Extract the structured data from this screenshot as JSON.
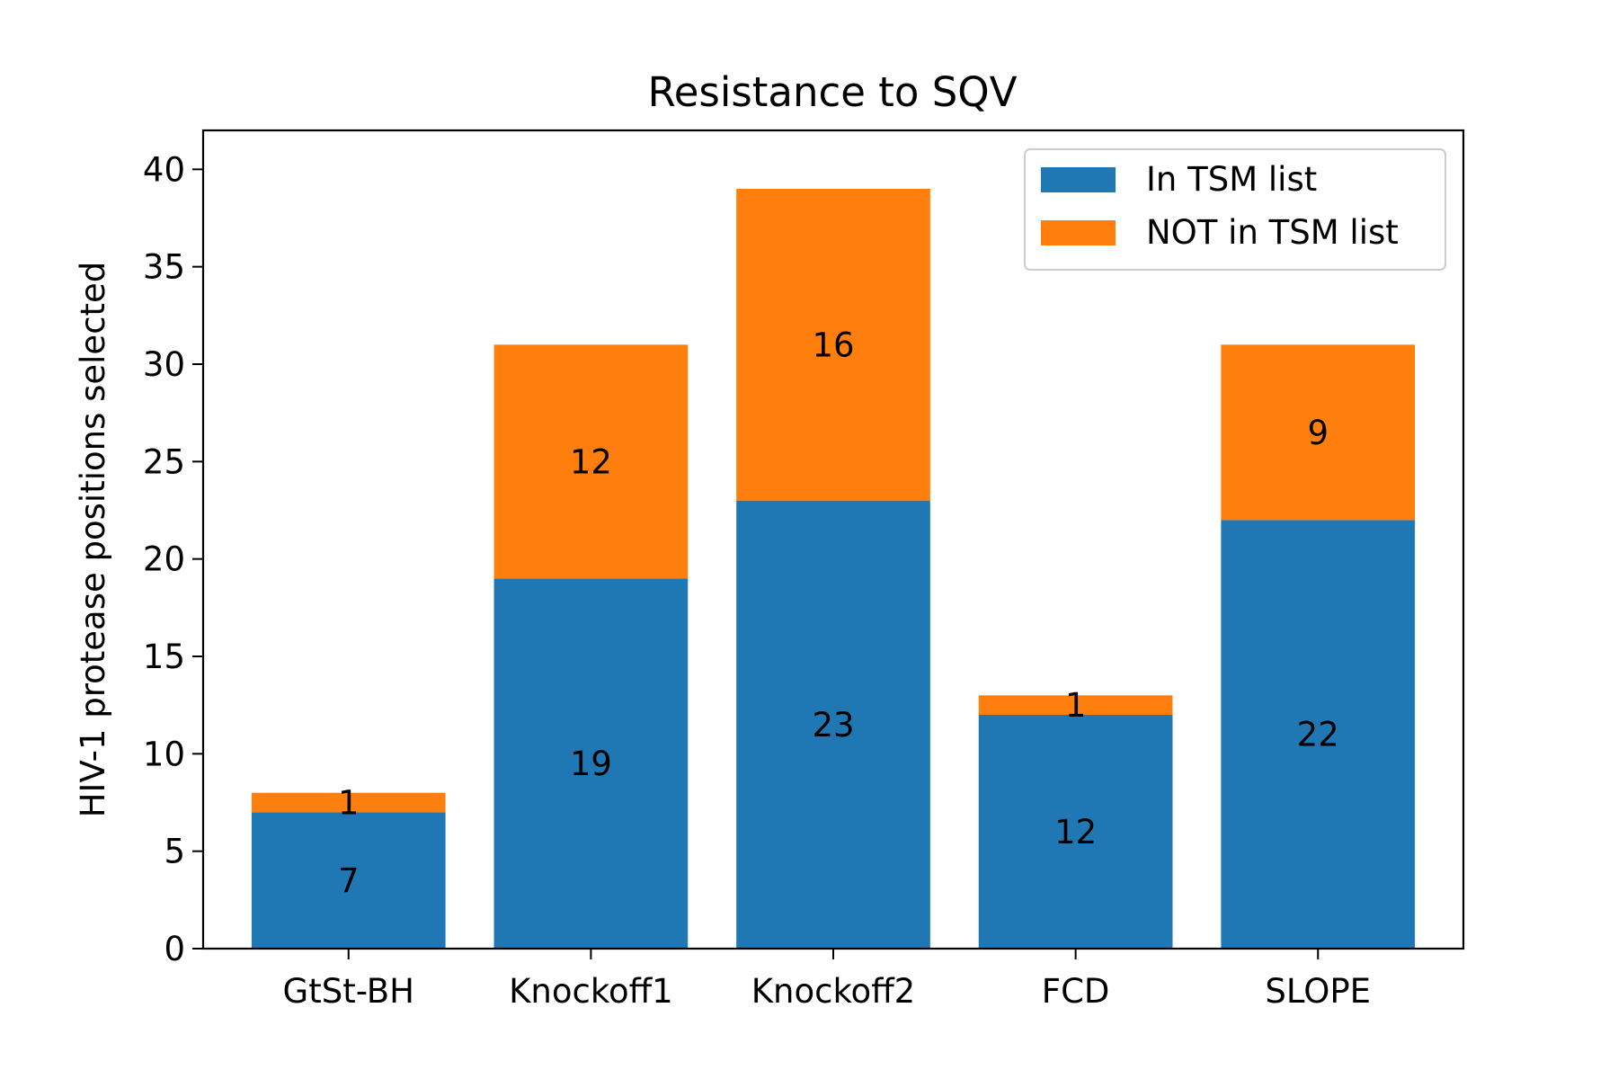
{
  "chart_data": {
    "type": "bar",
    "stacked": true,
    "title": "Resistance to SQV",
    "xlabel": "",
    "ylabel": "HIV-1 protease positions selected",
    "categories": [
      "GtSt-BH",
      "Knockoff1",
      "Knockoff2",
      "FCD",
      "SLOPE"
    ],
    "series": [
      {
        "name": "In TSM list",
        "color": "#1f77b4",
        "values": [
          7,
          19,
          23,
          12,
          22
        ]
      },
      {
        "name": "NOT in TSM list",
        "color": "#ff7f0e",
        "values": [
          1,
          12,
          16,
          1,
          9
        ]
      }
    ],
    "ylim": [
      0,
      42
    ],
    "yticks": [
      0,
      5,
      10,
      15,
      20,
      25,
      30,
      35,
      40
    ],
    "legend_position": "top-right",
    "grid": false
  }
}
